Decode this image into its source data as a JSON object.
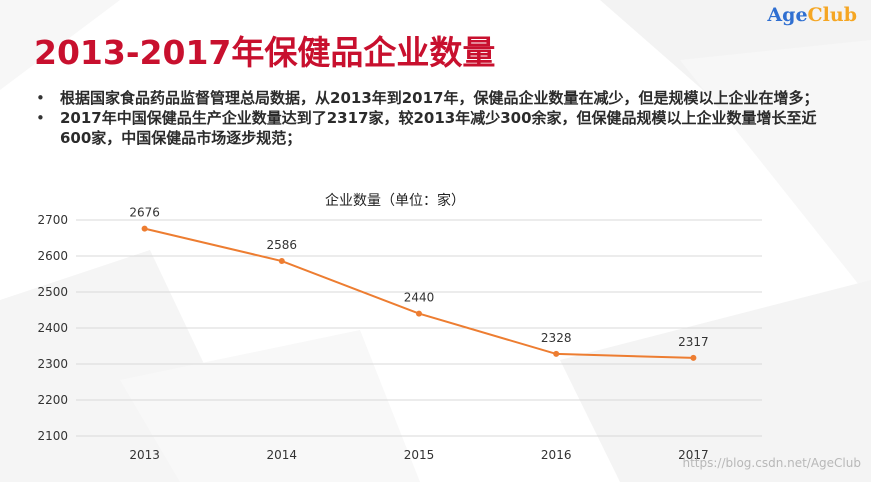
{
  "header": {
    "logo_prefix": "Age",
    "logo_suffix": "Club",
    "title": "2013-2017年保健品企业数量"
  },
  "bullets": [
    {
      "symbol": "•",
      "text": "根据国家食品药品监督管理总局数据，从2013年到2017年，保健品企业数量在减少，但是规模以上企业在增多；"
    },
    {
      "symbol": "•",
      "text": "2017年中国保健品生产企业数量达到了2317家，较2013年减少300余家，但保健品规模以上企业数量增长至近600家，中国保健品市场逐步规范；"
    }
  ],
  "chart_data": {
    "type": "line",
    "title": "企业数量（单位：家）",
    "categories": [
      "2013",
      "2014",
      "2015",
      "2016",
      "2017"
    ],
    "series": [
      {
        "values": [
          2676,
          2586,
          2440,
          2328,
          2317
        ],
        "color": "#ed7d31"
      }
    ],
    "data_labels": [
      "2676",
      "2586",
      "2440",
      "2328",
      "2317"
    ],
    "yticks": [
      2100,
      2200,
      2300,
      2400,
      2500,
      2600,
      2700
    ],
    "ylim": [
      2100,
      2700
    ],
    "grid": true,
    "legend": "none"
  },
  "watermark": "https://blog.csdn.net/AgeClub"
}
